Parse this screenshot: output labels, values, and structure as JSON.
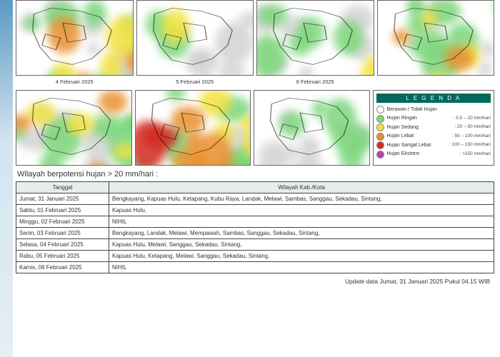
{
  "maps_toprow": [
    {
      "caption": "",
      "scheme": "heavy"
    },
    {
      "caption": "",
      "scheme": "light"
    },
    {
      "caption": "",
      "scheme": "light"
    },
    {
      "caption": "",
      "scheme": "heavy"
    }
  ],
  "maps_secondrow": [
    {
      "caption": "4 Februari 2025",
      "scheme": "heavy"
    },
    {
      "caption": "5 Februari 2025",
      "scheme": "veryheavy"
    },
    {
      "caption": "6 Februari 2025",
      "scheme": "sparse"
    }
  ],
  "legend": {
    "title": "L E G E N D A",
    "items": [
      {
        "label": "Berawan / Tidak Hujan",
        "value": "",
        "color": "#ffffff"
      },
      {
        "label": "Hujan Ringan",
        "value": ": 0.5 – 20 mm/hari",
        "color": "#7bd67b"
      },
      {
        "label": "Hujan Sedang",
        "value": ": 20 – 50 mm/hari",
        "color": "#f2e23e"
      },
      {
        "label": "Hujan Lebat",
        "value": ": 50 – 100 mm/hari",
        "color": "#e9902e"
      },
      {
        "label": "Hujan Sangat Lebat",
        "value": ": 100 – 150 mm/hari",
        "color": "#d22b1f"
      },
      {
        "label": "Hujan Ekstrem",
        "value": ": >150 mm/hari",
        "color": "#b643b6"
      }
    ]
  },
  "section_title": "Wilayah berpotensi hujan > 20 mm/hari :",
  "table": {
    "col_date": "Tanggal",
    "col_wilayah": "Wilayah Kab./Kota",
    "rows": [
      {
        "date": "Jumat, 31 Januari 2025",
        "wilayah": "Bengkayang,    Kapuas Hulu,    Ketapang,    Kubu Raya,    Landak,    Melawi,    Sambas,    Sanggau,    Sekadau,    Sintang,"
      },
      {
        "date": "Sabtu, 01 Februari 2025",
        "wilayah": "Kapuas Hulu,"
      },
      {
        "date": "Minggu, 02 Februari 2025",
        "wilayah": "NIHIL"
      },
      {
        "date": "Senin, 03 Februari 2025",
        "wilayah": "Bengkayang,    Landak,    Melawi,    Mempawah,    Sambas,    Sanggau,    Sekadau,    Sintang,"
      },
      {
        "date": "Selasa, 04 Februari 2025",
        "wilayah": "Kapuas Hulu,    Melawi,    Sanggau,    Sekadau,    Sintang,"
      },
      {
        "date": "Rabu, 05 Februari 2025",
        "wilayah": "Kapuas Hulu,    Ketapang,    Melawi,    Sanggau,    Sekadau,    Sintang,"
      },
      {
        "date": "Kamis, 06 Februari 2025",
        "wilayah": "NIHIL"
      }
    ]
  },
  "update_text": "Update data Jumat, 31 Januari 2025 Pukul 04.15 WIB",
  "colors": {
    "gray": "#c9c9c9",
    "green": "#7bd67b",
    "yellow": "#f2e23e",
    "orange": "#e9902e",
    "red": "#d22b1f"
  },
  "schemes": {
    "heavy": {
      "green": 10,
      "yellow": 4,
      "orange": 3,
      "red": 0,
      "gray": 5
    },
    "veryheavy": {
      "green": 9,
      "yellow": 5,
      "orange": 4,
      "red": 2,
      "gray": 3
    },
    "light": {
      "green": 6,
      "yellow": 1,
      "orange": 0,
      "red": 0,
      "gray": 8
    },
    "sparse": {
      "green": 5,
      "yellow": 0,
      "orange": 0,
      "red": 0,
      "gray": 9
    }
  }
}
